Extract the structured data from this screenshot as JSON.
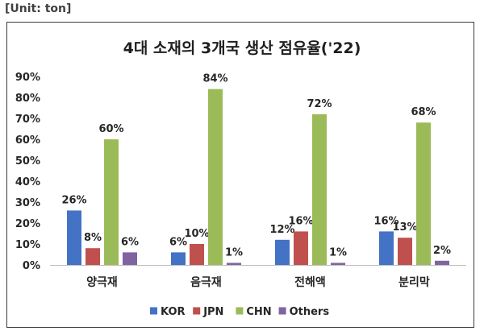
{
  "unit_label": "[Unit: ton]",
  "chart_data": {
    "type": "bar",
    "title": "4대 소재의 3개국 생산 점유율('22)",
    "xlabel": "",
    "ylabel": "",
    "categories": [
      "양극재",
      "음극재",
      "전해액",
      "분리막"
    ],
    "series": [
      {
        "name": "KOR",
        "color": "#4472C4",
        "values": [
          26,
          6,
          12,
          16
        ],
        "labels": [
          "26%",
          "6%",
          "12%",
          "16%"
        ]
      },
      {
        "name": "JPN",
        "color": "#C0504D",
        "values": [
          8,
          10,
          16,
          13
        ],
        "labels": [
          "8%",
          "10%",
          "16%",
          "13%"
        ]
      },
      {
        "name": "CHN",
        "color": "#9BBB59",
        "values": [
          60,
          84,
          72,
          68
        ],
        "labels": [
          "60%",
          "84%",
          "72%",
          "68%"
        ]
      },
      {
        "name": "Others",
        "color": "#8064A2",
        "values": [
          6,
          1,
          1,
          2
        ],
        "labels": [
          "6%",
          "1%",
          "1%",
          "2%"
        ]
      }
    ],
    "ylim": [
      0,
      90
    ],
    "yticks": [
      0,
      10,
      20,
      30,
      40,
      50,
      60,
      70,
      80,
      90
    ],
    "ytick_labels": [
      "0%",
      "10%",
      "20%",
      "30%",
      "40%",
      "50%",
      "60%",
      "70%",
      "80%",
      "90%"
    ],
    "grid": false,
    "legend": "bottom"
  }
}
